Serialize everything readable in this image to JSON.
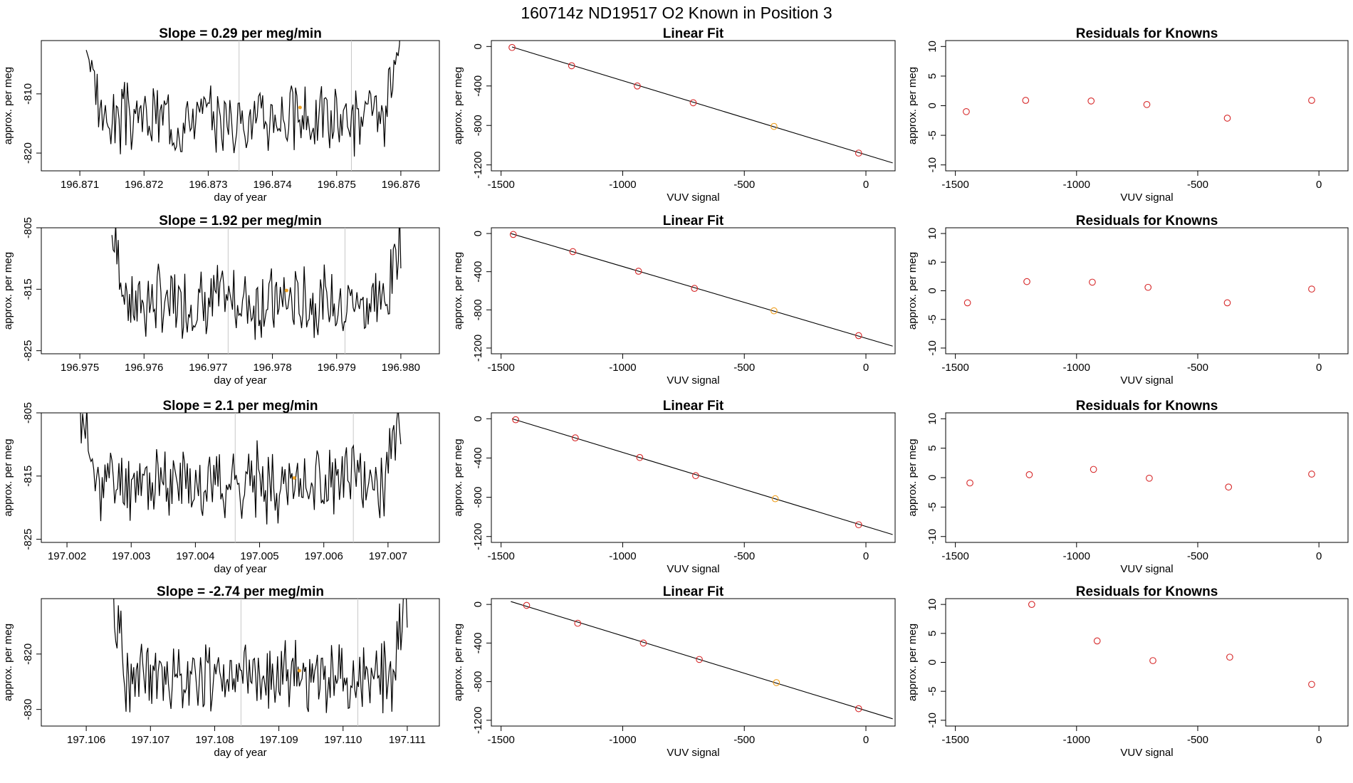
{
  "title": "160714z      ND19517    O2 Known in Position  3",
  "labels": {
    "x_time": "day of year",
    "y": "approx. per meg",
    "x_vuv": "VUV signal",
    "fit_title": "Linear Fit",
    "resid_title": "Residuals for Knowns"
  },
  "colors": {
    "line": "#000000",
    "point_red": "#d62728",
    "point_orange": "#f0a020",
    "vline": "#c8c8c8"
  },
  "chart_data": [
    {
      "type": "line",
      "title": "Slope =  0.29  per meg/min",
      "xlabel": "day of year",
      "ylabel": "approx. per meg",
      "xlim": [
        196.8704,
        196.8766
      ],
      "ylim": [
        -823,
        -801
      ],
      "xticks": [
        "196.871",
        "196.872",
        "196.873",
        "196.874",
        "196.875",
        "196.876"
      ],
      "yticks": [
        "-810",
        "-820"
      ],
      "x_start": 196.8711,
      "x_end": 196.876,
      "baseline": -814,
      "amplitude": 4.5,
      "edge_rise": 12,
      "vlines": [
        196.87348,
        196.87523
      ],
      "marker": [
        196.87443,
        -812.3
      ],
      "seed": 3
    },
    {
      "type": "line",
      "title": "Slope =  1.92  per meg/min",
      "xlabel": "day of year",
      "ylabel": "approx. per meg",
      "xlim": [
        196.9744,
        196.9806
      ],
      "ylim": [
        -825.5,
        -805
      ],
      "xticks": [
        "196.975",
        "196.976",
        "196.977",
        "196.978",
        "196.979",
        "196.980"
      ],
      "yticks": [
        "-805",
        "-815",
        "-825"
      ],
      "x_start": 196.9755,
      "x_end": 196.98,
      "baseline": -817,
      "amplitude": 4.5,
      "edge_rise": 12,
      "vlines": [
        196.97731,
        196.97913
      ],
      "marker": [
        196.97822,
        -815.2
      ],
      "seed": 7
    },
    {
      "type": "line",
      "title": "Slope =  2.1  per meg/min",
      "xlabel": "day of year",
      "ylabel": "approx. per meg",
      "xlim": [
        197.0016,
        197.0078
      ],
      "ylim": [
        -825.5,
        -805
      ],
      "xticks": [
        "197.002",
        "197.003",
        "197.004",
        "197.005",
        "197.006",
        "197.007"
      ],
      "yticks": [
        "-805",
        "-815",
        "-825"
      ],
      "x_start": 197.0022,
      "x_end": 197.0072,
      "baseline": -816,
      "amplitude": 4.5,
      "edge_rise": 12,
      "vlines": [
        197.00462,
        197.00646
      ],
      "marker": [
        197.00554,
        -815.3
      ],
      "seed": 11
    },
    {
      "type": "line",
      "title": "Slope =  -2.74  per meg/min",
      "xlabel": "day of year",
      "ylabel": "approx. per meg",
      "xlim": [
        197.1053,
        197.1115
      ],
      "ylim": [
        -833,
        -810
      ],
      "xticks": [
        "197.106",
        "197.107",
        "197.108",
        "197.109",
        "197.110",
        "197.111"
      ],
      "yticks": [
        "-820",
        "-830"
      ],
      "x_start": 197.1064,
      "x_end": 197.111,
      "baseline": -824,
      "amplitude": 5,
      "edge_rise": 14,
      "vlines": [
        197.10841,
        197.11023
      ],
      "marker": [
        197.10932,
        -823.0
      ],
      "seed": 19
    },
    {
      "type": "scatter",
      "title": "Linear Fit",
      "xlabel": "VUV signal",
      "ylabel": "approx. per meg",
      "xlim": [
        -1540,
        120
      ],
      "ylim": [
        -1260,
        60
      ],
      "xticks": [
        "-1500",
        "-1000",
        "-500",
        "0"
      ],
      "yticks": [
        "0",
        "-400",
        "-800",
        "-1200"
      ],
      "x": [
        -1455,
        -1210,
        -940,
        -710,
        -378,
        -30
      ],
      "y": [
        -10,
        -195,
        -400,
        -570,
        -810,
        -1080
      ],
      "colors": [
        "red",
        "red",
        "red",
        "red",
        "orange",
        "red"
      ],
      "fit_line": [
        [
          -1455,
          -5
        ],
        [
          110,
          -1180
        ]
      ]
    },
    {
      "type": "scatter",
      "title": "Linear Fit",
      "xlabel": "VUV signal",
      "ylabel": "approx. per meg",
      "xlim": [
        -1540,
        120
      ],
      "ylim": [
        -1260,
        60
      ],
      "xticks": [
        "-1500",
        "-1000",
        "-500",
        "0"
      ],
      "yticks": [
        "0",
        "-400",
        "-800",
        "-1200"
      ],
      "x": [
        -1450,
        -1205,
        -935,
        -705,
        -378,
        -30
      ],
      "y": [
        -10,
        -190,
        -395,
        -575,
        -810,
        -1070
      ],
      "colors": [
        "red",
        "red",
        "red",
        "red",
        "orange",
        "red"
      ],
      "fit_line": [
        [
          -1460,
          0
        ],
        [
          110,
          -1180
        ]
      ]
    },
    {
      "type": "scatter",
      "title": "Linear Fit",
      "xlabel": "VUV signal",
      "ylabel": "approx. per meg",
      "xlim": [
        -1540,
        120
      ],
      "ylim": [
        -1260,
        60
      ],
      "xticks": [
        "-1500",
        "-1000",
        "-500",
        "0"
      ],
      "yticks": [
        "0",
        "-400",
        "-800",
        "-1200"
      ],
      "x": [
        -1440,
        -1195,
        -930,
        -700,
        -373,
        -30
      ],
      "y": [
        -10,
        -195,
        -395,
        -580,
        -815,
        -1080
      ],
      "colors": [
        "red",
        "red",
        "red",
        "red",
        "orange",
        "red"
      ],
      "fit_line": [
        [
          -1455,
          0
        ],
        [
          110,
          -1180
        ]
      ]
    },
    {
      "type": "scatter",
      "title": "Linear Fit",
      "xlabel": "VUV signal",
      "ylabel": "approx. per meg",
      "xlim": [
        -1540,
        120
      ],
      "ylim": [
        -1260,
        60
      ],
      "xticks": [
        "-1500",
        "-1000",
        "-500",
        "0"
      ],
      "yticks": [
        "0",
        "-400",
        "-800",
        "-1200"
      ],
      "x": [
        -1395,
        -1185,
        -915,
        -685,
        -368,
        -30
      ],
      "y": [
        -10,
        -195,
        -400,
        -570,
        -810,
        -1080
      ],
      "colors": [
        "red",
        "red",
        "red",
        "red",
        "orange",
        "red"
      ],
      "fit_line": [
        [
          -1460,
          30
        ],
        [
          110,
          -1185
        ]
      ]
    },
    {
      "type": "scatter",
      "title": "Residuals for Knowns",
      "xlabel": "VUV signal",
      "ylabel": "approx. per meg",
      "xlim": [
        -1540,
        120
      ],
      "ylim": [
        -11,
        11
      ],
      "xticks": [
        "-1500",
        "-1000",
        "-500",
        "0"
      ],
      "yticks": [
        "10",
        "5",
        "0",
        "-5",
        "-10"
      ],
      "x": [
        -1455,
        -1210,
        -940,
        -710,
        -378,
        -30
      ],
      "y": [
        -1.0,
        0.9,
        0.8,
        0.2,
        -2.1,
        0.9
      ],
      "colors": [
        "red",
        "red",
        "red",
        "red",
        "red",
        "red"
      ]
    },
    {
      "type": "scatter",
      "title": "Residuals for Knowns",
      "xlabel": "VUV signal",
      "ylabel": "approx. per meg",
      "xlim": [
        -1540,
        120
      ],
      "ylim": [
        -11,
        11
      ],
      "xticks": [
        "-1500",
        "-1000",
        "-500",
        "0"
      ],
      "yticks": [
        "10",
        "5",
        "0",
        "-5",
        "-10"
      ],
      "x": [
        -1450,
        -1205,
        -935,
        -705,
        -378,
        -30
      ],
      "y": [
        -2.1,
        1.6,
        1.5,
        0.6,
        -2.1,
        0.3
      ],
      "colors": [
        "red",
        "red",
        "red",
        "red",
        "red",
        "red"
      ]
    },
    {
      "type": "scatter",
      "title": "Residuals for Knowns",
      "xlabel": "VUV signal",
      "ylabel": "approx. per meg",
      "xlim": [
        -1540,
        120
      ],
      "ylim": [
        -11,
        11
      ],
      "xticks": [
        "-1500",
        "-1000",
        "-500",
        "0"
      ],
      "yticks": [
        "10",
        "5",
        "0",
        "-5",
        "-10"
      ],
      "x": [
        -1440,
        -1195,
        -930,
        -700,
        -373,
        -30
      ],
      "y": [
        -0.9,
        0.5,
        1.4,
        -0.1,
        -1.6,
        0.6
      ],
      "colors": [
        "red",
        "red",
        "red",
        "red",
        "red",
        "red"
      ]
    },
    {
      "type": "scatter",
      "title": "Residuals for Knowns",
      "xlabel": "VUV signal",
      "ylabel": "approx. per meg",
      "xlim": [
        -1540,
        120
      ],
      "ylim": [
        -11,
        11
      ],
      "xticks": [
        "-1500",
        "-1000",
        "-500",
        "0"
      ],
      "yticks": [
        "10",
        "5",
        "0",
        "-5",
        "-10"
      ],
      "x": [
        -1185,
        -915,
        -685,
        -368,
        -30
      ],
      "y": [
        10.0,
        3.7,
        0.3,
        0.9,
        -3.8
      ],
      "colors": [
        "red",
        "red",
        "red",
        "red",
        "red"
      ]
    }
  ]
}
